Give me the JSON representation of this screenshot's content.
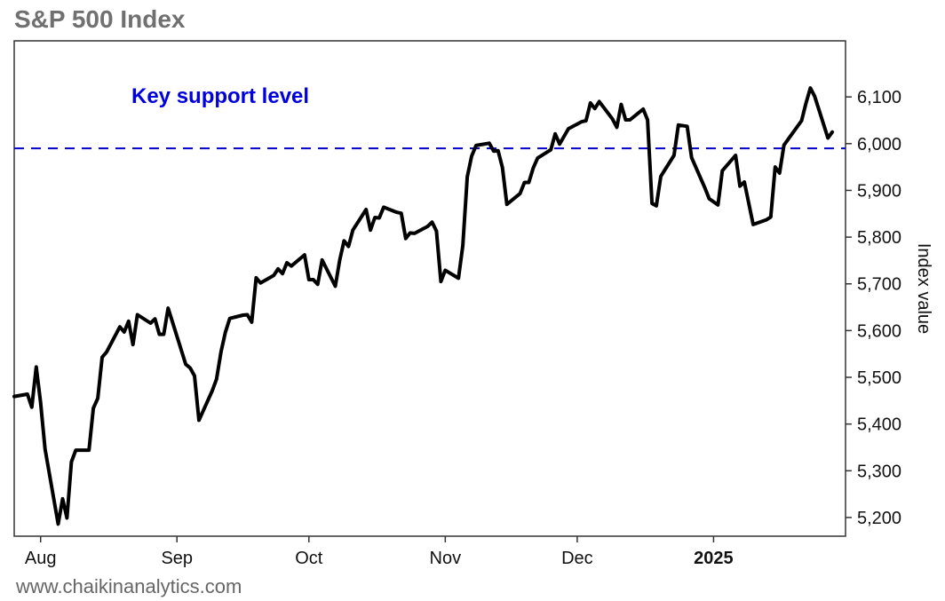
{
  "chart_data": {
    "type": "line",
    "title": "S&P 500 Index",
    "ylabel": "Index value",
    "xlabel": "",
    "ylim": [
      5160,
      6220
    ],
    "yticks": [
      5200,
      5300,
      5400,
      5500,
      5600,
      5700,
      5800,
      5900,
      6000,
      6100
    ],
    "ytick_labels": [
      "5,200",
      "5,300",
      "5,400",
      "5,500",
      "5,600",
      "5,700",
      "5,800",
      "5,900",
      "6,000",
      "6,100"
    ],
    "xlim": [
      "2024-07-26",
      "2025-01-31"
    ],
    "xticks": [
      {
        "date": "2024-08-01",
        "label": "Aug",
        "bold": false
      },
      {
        "date": "2024-09-01",
        "label": "Sep",
        "bold": false
      },
      {
        "date": "2024-10-01",
        "label": "Oct",
        "bold": false
      },
      {
        "date": "2024-11-01",
        "label": "Nov",
        "bold": false
      },
      {
        "date": "2024-12-01",
        "label": "Dec",
        "bold": false
      },
      {
        "date": "2025-01-01",
        "label": "2025",
        "bold": true
      }
    ],
    "grid": false,
    "reference_line": {
      "y": 5990,
      "label": "Key support level",
      "color": "#0000cc",
      "style": "dashed"
    },
    "series": [
      {
        "color": "#000000",
        "x": [
          "2024-07-26",
          "2024-07-29",
          "2024-07-30",
          "2024-07-31",
          "2024-08-01",
          "2024-08-02",
          "2024-08-05",
          "2024-08-06",
          "2024-08-07",
          "2024-08-08",
          "2024-08-09",
          "2024-08-12",
          "2024-08-13",
          "2024-08-14",
          "2024-08-15",
          "2024-08-16",
          "2024-08-19",
          "2024-08-20",
          "2024-08-21",
          "2024-08-22",
          "2024-08-23",
          "2024-08-26",
          "2024-08-27",
          "2024-08-28",
          "2024-08-29",
          "2024-08-30",
          "2024-09-03",
          "2024-09-04",
          "2024-09-05",
          "2024-09-06",
          "2024-09-09",
          "2024-09-10",
          "2024-09-11",
          "2024-09-12",
          "2024-09-13",
          "2024-09-16",
          "2024-09-17",
          "2024-09-18",
          "2024-09-19",
          "2024-09-20",
          "2024-09-23",
          "2024-09-24",
          "2024-09-25",
          "2024-09-26",
          "2024-09-27",
          "2024-09-30",
          "2024-10-01",
          "2024-10-02",
          "2024-10-03",
          "2024-10-04",
          "2024-10-07",
          "2024-10-08",
          "2024-10-09",
          "2024-10-10",
          "2024-10-11",
          "2024-10-14",
          "2024-10-15",
          "2024-10-16",
          "2024-10-17",
          "2024-10-18",
          "2024-10-21",
          "2024-10-22",
          "2024-10-23",
          "2024-10-24",
          "2024-10-25",
          "2024-10-28",
          "2024-10-29",
          "2024-10-30",
          "2024-10-31",
          "2024-11-01",
          "2024-11-04",
          "2024-11-05",
          "2024-11-06",
          "2024-11-07",
          "2024-11-08",
          "2024-11-11",
          "2024-11-12",
          "2024-11-13",
          "2024-11-14",
          "2024-11-15",
          "2024-11-18",
          "2024-11-19",
          "2024-11-20",
          "2024-11-21",
          "2024-11-22",
          "2024-11-25",
          "2024-11-26",
          "2024-11-27",
          "2024-11-29",
          "2024-12-02",
          "2024-12-03",
          "2024-12-04",
          "2024-12-05",
          "2024-12-06",
          "2024-12-09",
          "2024-12-10",
          "2024-12-11",
          "2024-12-12",
          "2024-12-13",
          "2024-12-16",
          "2024-12-17",
          "2024-12-18",
          "2024-12-19",
          "2024-12-20",
          "2024-12-23",
          "2024-12-24",
          "2024-12-26",
          "2024-12-27",
          "2024-12-30",
          "2024-12-31",
          "2025-01-02",
          "2025-01-03",
          "2025-01-06",
          "2025-01-07",
          "2025-01-08",
          "2025-01-10",
          "2025-01-13",
          "2025-01-14",
          "2025-01-15",
          "2025-01-16",
          "2025-01-17",
          "2025-01-21",
          "2025-01-22",
          "2025-01-23",
          "2025-01-24",
          "2025-01-27",
          "2025-01-28"
        ],
        "values": [
          5459,
          5464,
          5436,
          5522,
          5446,
          5347,
          5186,
          5240,
          5199,
          5319,
          5344,
          5344,
          5434,
          5455,
          5543,
          5554,
          5608,
          5597,
          5620,
          5570,
          5634,
          5616,
          5625,
          5592,
          5592,
          5648,
          5528,
          5520,
          5503,
          5408,
          5471,
          5496,
          5554,
          5596,
          5626,
          5633,
          5634,
          5618,
          5713,
          5702,
          5718,
          5732,
          5722,
          5745,
          5738,
          5762,
          5709,
          5709,
          5699,
          5751,
          5695,
          5751,
          5792,
          5780,
          5815,
          5859,
          5815,
          5842,
          5841,
          5864,
          5853,
          5851,
          5797,
          5809,
          5808,
          5823,
          5832,
          5813,
          5705,
          5729,
          5712,
          5782,
          5929,
          5973,
          5996,
          6001,
          5984,
          5985,
          5949,
          5870,
          5893,
          5917,
          5917,
          5948,
          5969,
          5987,
          6021,
          5999,
          6032,
          6047,
          6049,
          6087,
          6075,
          6090,
          6053,
          6035,
          6084,
          6051,
          6051,
          6074,
          6051,
          5872,
          5867,
          5930,
          5975,
          6040,
          6037,
          5970,
          5906,
          5882,
          5869,
          5942,
          5975,
          5909,
          5918,
          5827,
          5837,
          5843,
          5950,
          5937,
          5997,
          6049,
          6086,
          6119,
          6101,
          6012,
          6025
        ]
      }
    ]
  },
  "watermark": "www.chaikinanalytics.com"
}
